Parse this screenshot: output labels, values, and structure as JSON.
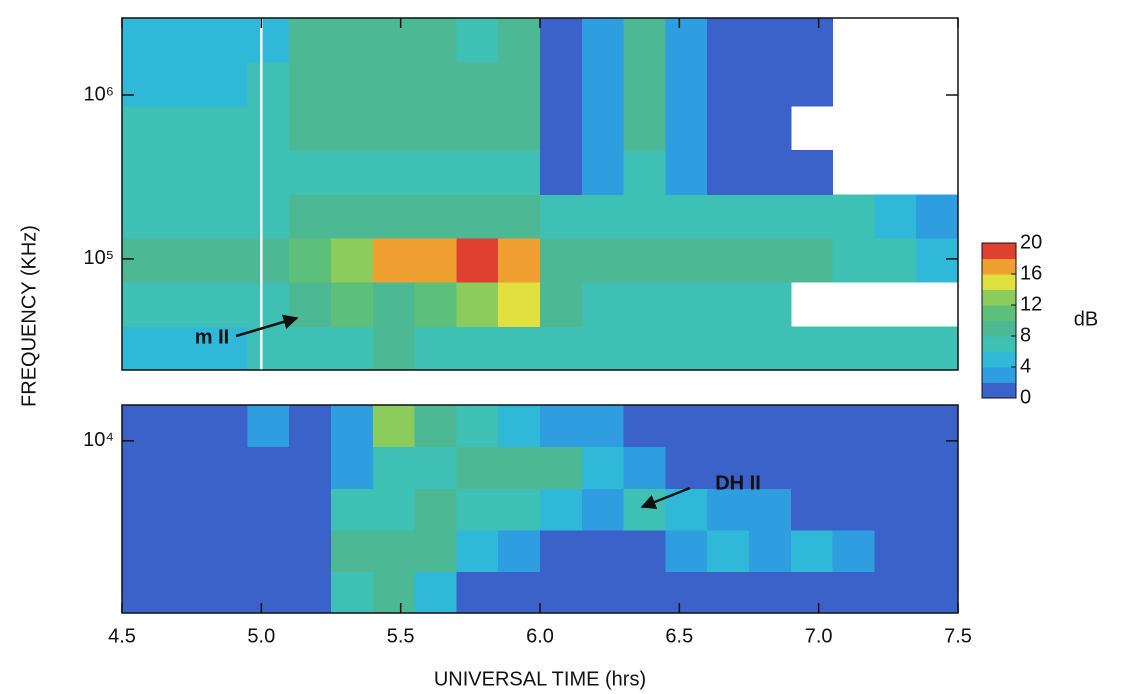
{
  "chart_data": {
    "type": "heatmap",
    "xlabel": "UNIVERSAL TIME (hrs)",
    "ylabel": "FREQUENCY (KHz)",
    "xlim": [
      4.5,
      7.5
    ],
    "xticks": [
      4.5,
      {
        "value": 5,
        "label": "5.0"
      },
      5.5,
      {
        "value": 6,
        "label": "6.0"
      },
      6.5,
      {
        "value": 7,
        "label": "7.0"
      },
      7.5
    ],
    "x_bins": [
      4.5,
      4.65,
      4.8,
      4.95,
      5.1,
      5.25,
      5.4,
      5.55,
      5.7,
      5.85,
      6.0,
      6.15,
      6.3,
      6.45,
      6.6,
      6.75,
      6.9,
      7.05,
      7.2,
      7.35,
      7.5
    ],
    "log_y": true,
    "panels": [
      {
        "ylim": [
          21000,
          2950000
        ],
        "yticks": [
          {
            "value": 100000,
            "label": "10⁵"
          },
          {
            "value": 1000000,
            "label": "10⁶"
          }
        ],
        "y_bins": [
          21000,
          38800,
          72100,
          134000,
          248000,
          461000,
          857000,
          1590000,
          2950000
        ],
        "vline_x": 5,
        "z": [
          [
            5,
            5,
            5,
            6,
            6,
            7,
            8,
            7,
            7,
            6,
            6,
            6,
            6,
            6,
            6,
            6,
            6,
            6,
            6,
            6
          ],
          [
            6,
            6,
            6,
            7,
            9,
            11,
            9,
            10,
            13,
            14,
            8,
            7,
            7,
            6,
            6,
            6,
            null,
            null,
            null,
            null
          ],
          [
            8,
            8,
            8,
            9,
            10,
            12,
            16,
            17,
            18,
            17,
            9,
            9,
            8,
            8,
            8,
            8,
            8,
            7,
            6,
            5
          ],
          [
            6,
            6,
            6,
            7,
            8,
            9,
            9,
            9,
            8,
            8,
            7,
            7,
            7,
            7,
            7,
            7,
            7,
            7,
            5,
            3
          ],
          [
            6,
            6,
            6,
            6,
            7,
            7,
            7,
            7,
            7,
            7,
            1,
            3,
            7,
            3,
            1,
            1,
            1,
            null,
            null,
            null
          ],
          [
            6,
            6,
            6,
            6,
            8,
            8,
            8,
            8,
            8,
            8,
            1,
            2,
            8,
            2,
            1,
            1,
            null,
            null,
            null,
            null
          ],
          [
            5,
            5,
            5,
            6,
            8,
            8,
            8,
            8,
            8,
            8,
            1,
            2,
            8,
            2,
            1,
            1,
            1,
            null,
            null,
            null
          ],
          [
            4,
            4,
            4,
            5,
            8,
            8,
            8,
            8,
            7,
            8,
            1,
            2,
            8,
            2,
            1,
            1,
            1,
            null,
            null,
            null
          ]
        ]
      },
      {
        "ylim": [
          900,
          16500
        ],
        "yticks": [
          {
            "value": 10000,
            "label": "10⁴"
          }
        ],
        "y_bins": [
          900,
          1610,
          2880,
          5150,
          9220,
          16500
        ],
        "z": [
          [
            1,
            1,
            1,
            1,
            1,
            7,
            8,
            5,
            1,
            1,
            1,
            1,
            1,
            1,
            1,
            1,
            1,
            1,
            1,
            1
          ],
          [
            1,
            1,
            1,
            1,
            1,
            8,
            9,
            8,
            5,
            3,
            1,
            1,
            1,
            3,
            5,
            3,
            5,
            3,
            1,
            1
          ],
          [
            1,
            1,
            1,
            1,
            1,
            6,
            7,
            8,
            7,
            7,
            5,
            3,
            7,
            5,
            3,
            3,
            1,
            1,
            1,
            1
          ],
          [
            1,
            1,
            1,
            1,
            1,
            3,
            6,
            6,
            8,
            9,
            8,
            5,
            3,
            1,
            1,
            1,
            1,
            1,
            1,
            1
          ],
          [
            1,
            1,
            1,
            3,
            1,
            3,
            12,
            8,
            7,
            5,
            3,
            3,
            1,
            1,
            1,
            1,
            1,
            1,
            1,
            1
          ]
        ]
      }
    ],
    "colorbar": {
      "zlim": [
        0,
        20
      ],
      "zticks": [
        0,
        4,
        8,
        12,
        16,
        20
      ],
      "label": "dB",
      "colors": [
        "#3a62c8",
        "#2f9ee0",
        "#30b8d8",
        "#3fc0b4",
        "#4cb894",
        "#5cc07a",
        "#8ccc5c",
        "#e0e040",
        "#f0a030",
        "#e04030"
      ]
    },
    "annotations": [
      {
        "text": "m II"
      },
      {
        "text": "DH II"
      }
    ]
  }
}
